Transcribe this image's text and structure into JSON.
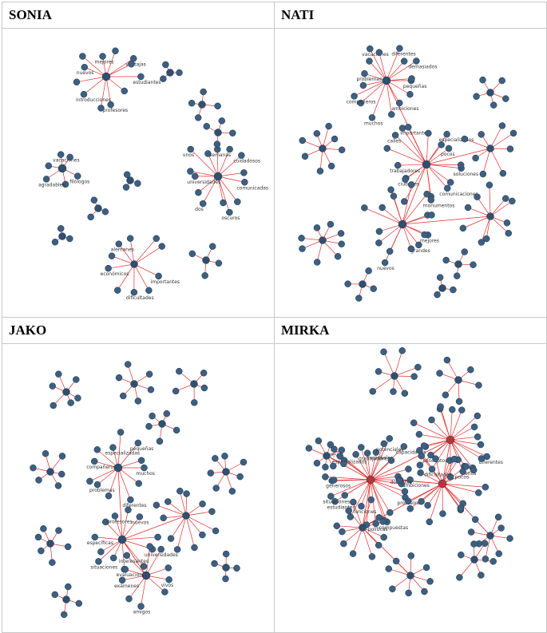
{
  "panels": [
    {
      "title": "SONIA",
      "nodes": [
        "estudiantes",
        "profesores",
        "introducciones",
        "nuevos",
        "mejores",
        "ventajas",
        "filólogos",
        "agradables",
        "vacaciones",
        "comunicadas",
        "oscuros",
        "dos",
        "universidades",
        "unos",
        "semanas",
        "cuidadosos",
        "importantes",
        "dificultades",
        "económicos",
        "alemanes"
      ]
    },
    {
      "title": "NATI",
      "nodes": [
        "pequeñas",
        "ambiciones",
        "muchos",
        "compañeros",
        "problemas",
        "vacaciones",
        "diferentes",
        "demasiados",
        "soluciones",
        "comunicaciones",
        "monumentos",
        "ciudades",
        "trabajadores",
        "calles",
        "importantes",
        "especializados",
        "pocos",
        "mejores",
        "grandes",
        "nuevos"
      ]
    },
    {
      "title": "JAKO",
      "nodes": [
        "muchos",
        "diferentes",
        "problemas",
        "compañeros",
        "especializadas",
        "pequeñas",
        "universidades",
        "evaluaciones",
        "situaciones",
        "específicas",
        "profesores",
        "nuevos",
        "vivos",
        "amigos",
        "exámenes",
        "interesantes"
      ]
    },
    {
      "title": "MIRKA",
      "nodes": [
        "ambiciones",
        "profesores",
        "compuestas",
        "políticas",
        "funciones",
        "estudiantes",
        "situaciones",
        "generosos",
        "nuevos",
        "especializados",
        "trabajadores",
        "mundiales",
        "potenciales",
        "capacidades",
        "docentes",
        "diferentes",
        "unos",
        "pocos",
        "dificultades",
        "conceptos"
      ]
    }
  ]
}
